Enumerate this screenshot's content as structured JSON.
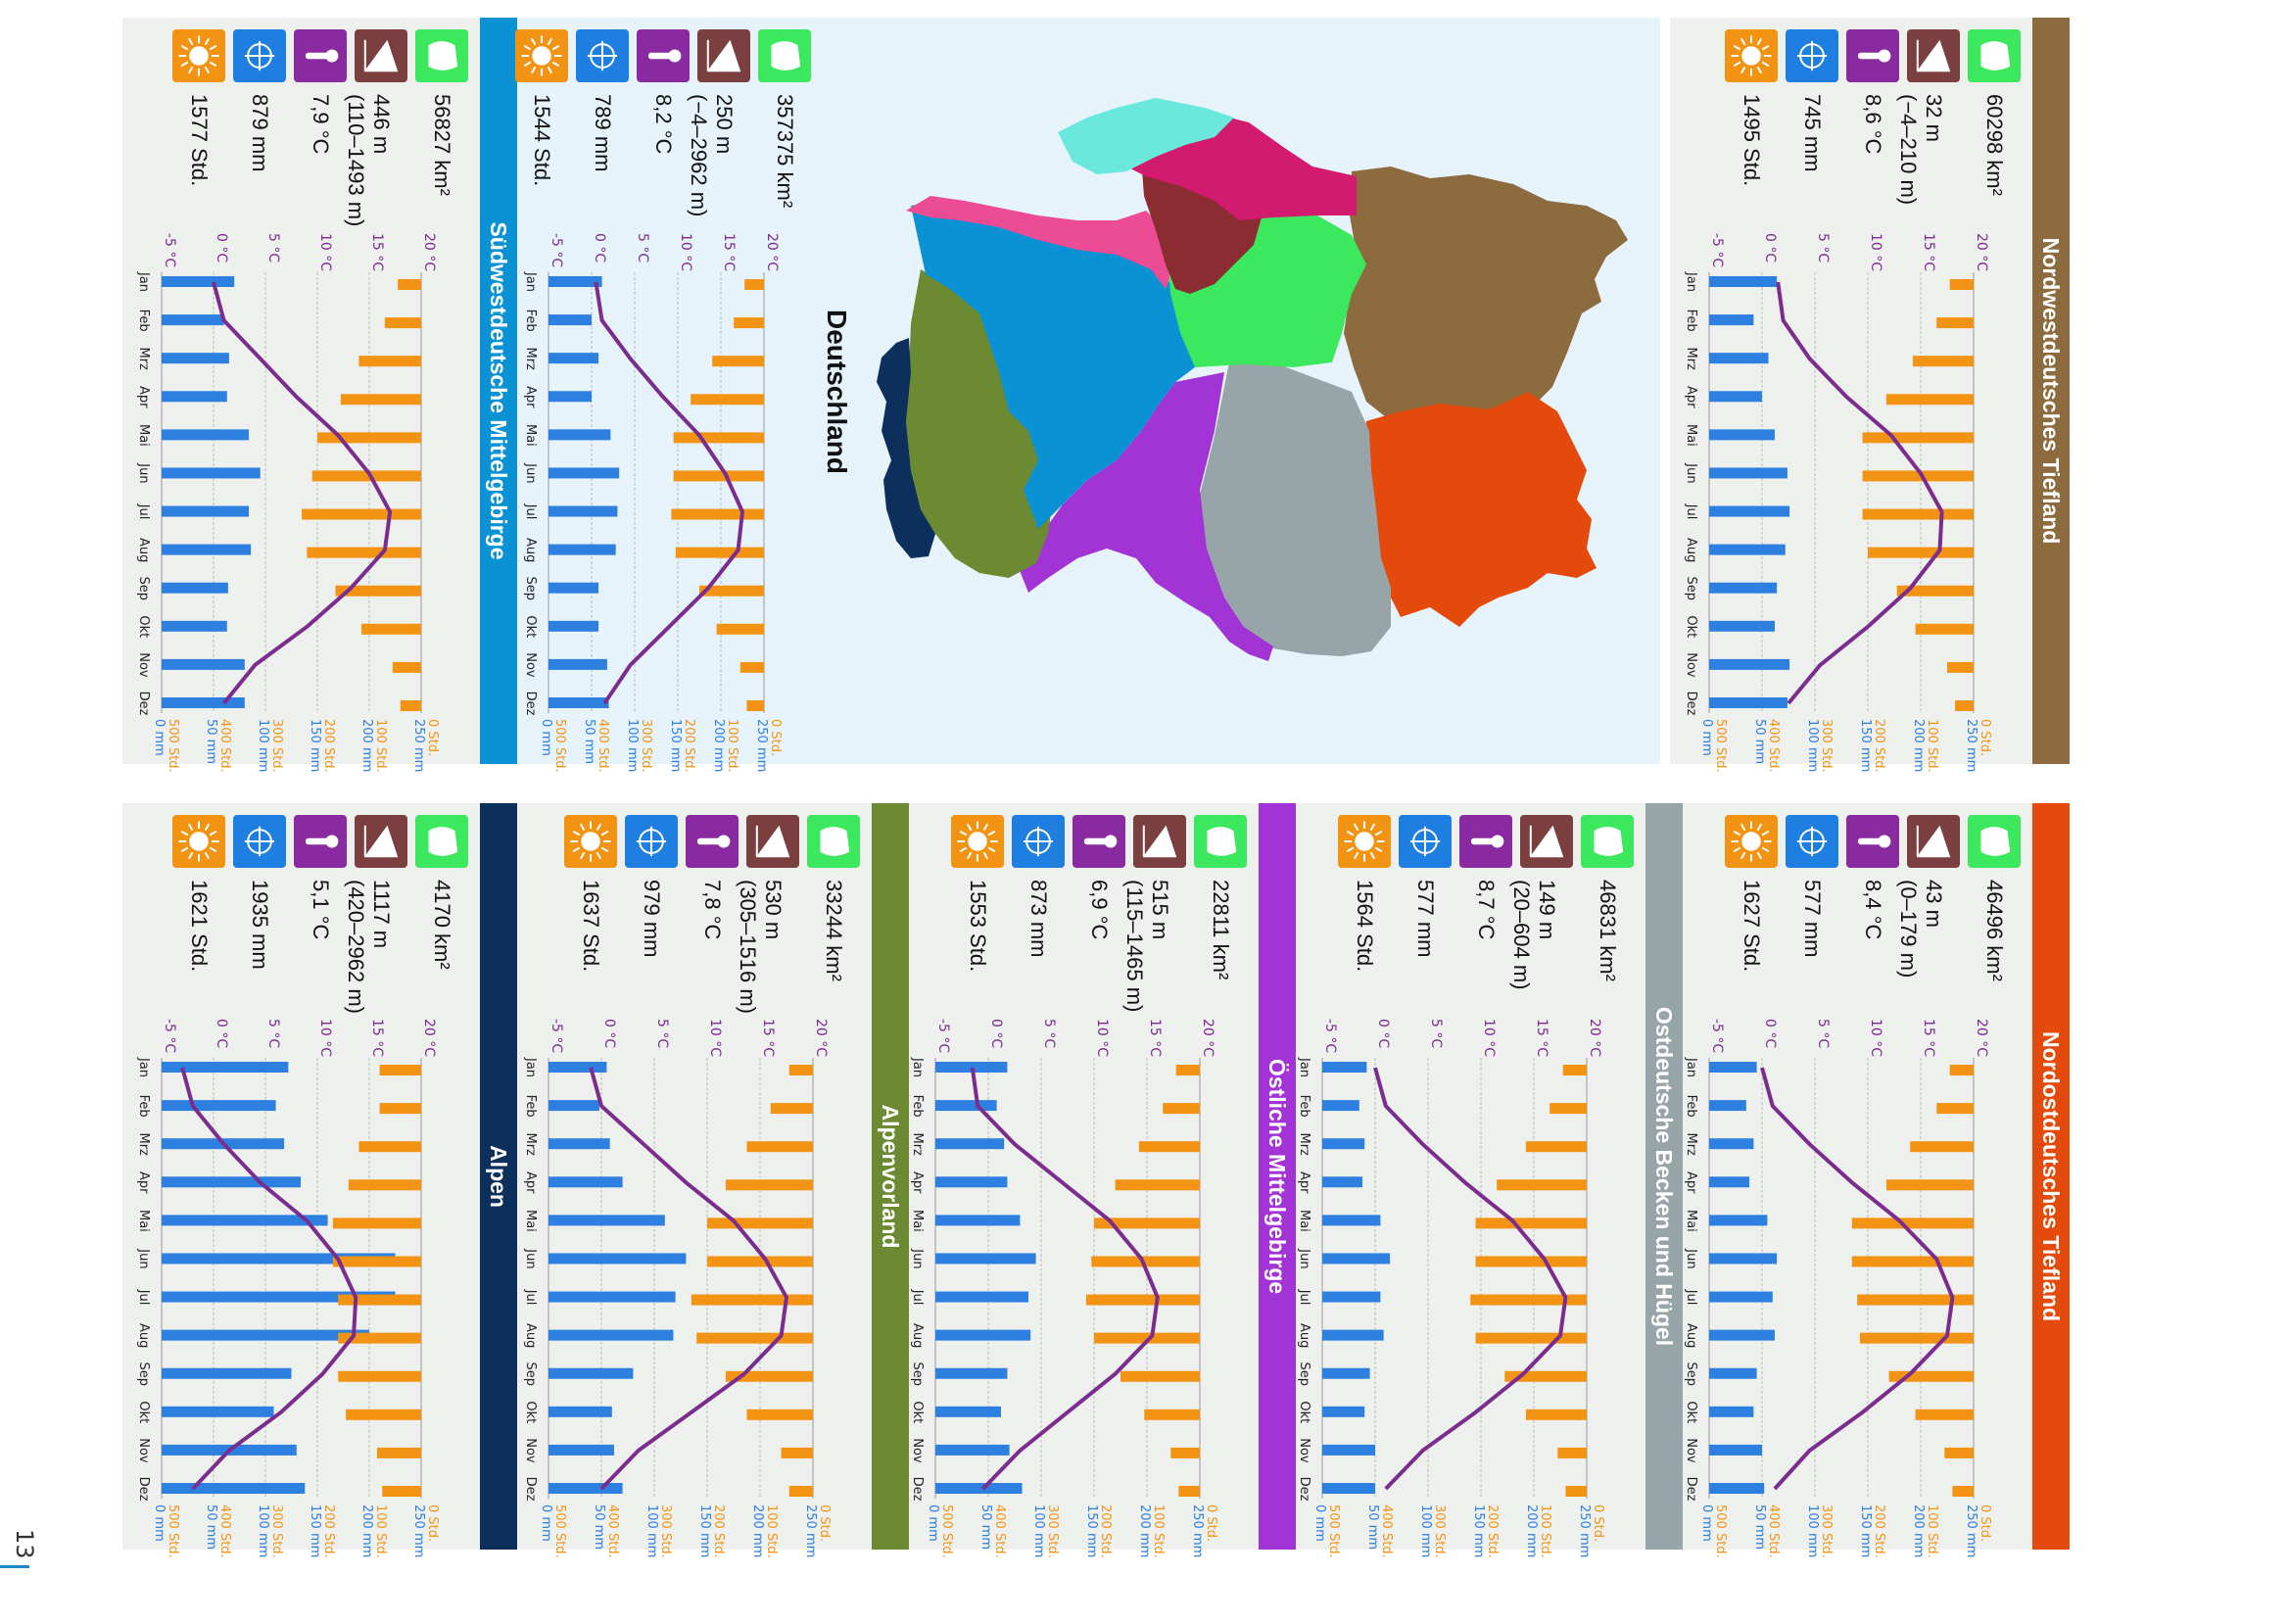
{
  "page_number": "13",
  "map": {
    "title": "Deutschland",
    "region_colors": [
      "#8c6b3e",
      "#e34a0b",
      "#98a5a8",
      "#a233d4",
      "#6b8a31",
      "#0d2f5c",
      "#0a92d4",
      "#ec4b95",
      "#3ce85d",
      "#8b2b32",
      "#d21a6e",
      "#6ae8db"
    ]
  },
  "icon_names": [
    "area-icon",
    "elevation-icon",
    "thermometer-icon",
    "precipitation-icon",
    "sunshine-icon"
  ],
  "colors": {
    "temperature": "#7b2d8e",
    "precipitation": "#2d7fe0",
    "sunshine": "#f39314",
    "panel": "#eef0ee"
  },
  "axes": {
    "temperature_ticks": [
      "20 °C",
      "15 °C",
      "10 °C",
      "5 °C",
      "0 °C",
      "-5 °C"
    ],
    "precipitation_ticks": [
      "250 mm",
      "200 mm",
      "150 mm",
      "100 mm",
      "50 mm",
      "0 mm"
    ],
    "sunshine_ticks": [
      "0 Std.",
      "100 Std.",
      "200 Std.",
      "300 Std.",
      "400 Std.",
      "500 Std."
    ]
  },
  "chart_data": [
    {
      "type": "bar",
      "title": "Nordwestdeutsches Tiefland",
      "color": "#8c6b3e",
      "stats": {
        "area": "60298 km²",
        "elevation": "32 m",
        "elevation_range": "(−4–210 m)",
        "temperature": "8,6 °C",
        "precipitation": "745 mm",
        "sunshine": "1495 Std."
      },
      "categories": [
        "Jan",
        "Feb",
        "Mrz",
        "Apr",
        "Mai",
        "Jun",
        "Jul",
        "Aug",
        "Sep",
        "Okt",
        "Nov",
        "Dez"
      ],
      "temperature": [
        1.5,
        2.0,
        4.5,
        8.0,
        12.2,
        15.0,
        17.0,
        16.8,
        14.0,
        10.0,
        5.5,
        2.5
      ],
      "precipitation": [
        64,
        42,
        56,
        50,
        62,
        74,
        76,
        72,
        64,
        62,
        76,
        74
      ],
      "sunshine": [
        45,
        70,
        115,
        165,
        210,
        210,
        210,
        200,
        145,
        110,
        50,
        35
      ],
      "ylim_temperature": [
        -5,
        20
      ],
      "ylim_precipitation": [
        0,
        250
      ],
      "ylim_sunshine": [
        0,
        500
      ]
    },
    {
      "type": "bar",
      "title": "Südwestdeutsche Mittelgebirge",
      "color": "#0a92d4",
      "stats": {
        "area": "56827 km²",
        "elevation": "446 m",
        "elevation_range": "(110–1493 m)",
        "temperature": "7,9 °C",
        "precipitation": "879 mm",
        "sunshine": "1577 Std."
      },
      "categories": [
        "Jan",
        "Feb",
        "Mrz",
        "Apr",
        "Mai",
        "Jun",
        "Jul",
        "Aug",
        "Sep",
        "Okt",
        "Nov",
        "Dez"
      ],
      "temperature": [
        0.0,
        1.0,
        4.5,
        8.0,
        12.0,
        15.0,
        17.0,
        16.5,
        13.2,
        9.0,
        4.0,
        1.0
      ],
      "precipitation": [
        70,
        60,
        65,
        63,
        84,
        95,
        84,
        86,
        64,
        63,
        80,
        80
      ],
      "sunshine": [
        45,
        70,
        120,
        155,
        200,
        210,
        230,
        220,
        165,
        115,
        55,
        40
      ],
      "ylim_temperature": [
        -5,
        20
      ],
      "ylim_precipitation": [
        0,
        250
      ],
      "ylim_sunshine": [
        0,
        500
      ]
    },
    {
      "type": "bar",
      "title": "Deutschland",
      "color": "#0a92d4",
      "stats": {
        "area": "357375 km²",
        "elevation": "250 m",
        "elevation_range": "(−4–2962 m)",
        "temperature": "8,2 °C",
        "precipitation": "789 mm",
        "sunshine": "1544 Std."
      },
      "categories": [
        "Jan",
        "Feb",
        "Mrz",
        "Apr",
        "Mai",
        "Jun",
        "Jul",
        "Aug",
        "Sep",
        "Okt",
        "Nov",
        "Dez"
      ],
      "temperature": [
        0.5,
        1.2,
        4.5,
        8.3,
        12.5,
        15.5,
        17.5,
        17.0,
        13.5,
        9.0,
        4.5,
        1.5
      ],
      "precipitation": [
        62,
        50,
        58,
        50,
        72,
        82,
        80,
        78,
        58,
        58,
        68,
        70
      ],
      "sunshine": [
        45,
        70,
        120,
        170,
        210,
        210,
        215,
        205,
        150,
        110,
        55,
        40
      ],
      "ylim_temperature": [
        -5,
        20
      ],
      "ylim_precipitation": [
        0,
        250
      ],
      "ylim_sunshine": [
        0,
        500
      ]
    },
    {
      "type": "bar",
      "title": "Nordostdeutsches Tiefland",
      "color": "#e34a0b",
      "stats": {
        "area": "46496 km²",
        "elevation": "43 m",
        "elevation_range": "(0–179 m)",
        "temperature": "8,4 °C",
        "precipitation": "577 mm",
        "sunshine": "1627 Std."
      },
      "categories": [
        "Jan",
        "Feb",
        "Mrz",
        "Apr",
        "Mai",
        "Jun",
        "Jul",
        "Aug",
        "Sep",
        "Okt",
        "Nov",
        "Dez"
      ],
      "temperature": [
        0.0,
        1.0,
        4.5,
        8.5,
        13.0,
        16.5,
        18.0,
        17.5,
        14.0,
        9.5,
        4.5,
        1.2
      ],
      "precipitation": [
        45,
        35,
        42,
        38,
        55,
        64,
        60,
        62,
        45,
        42,
        50,
        52
      ],
      "sunshine": [
        45,
        70,
        120,
        165,
        230,
        230,
        220,
        215,
        160,
        110,
        55,
        40
      ],
      "ylim_temperature": [
        -5,
        20
      ],
      "ylim_precipitation": [
        0,
        250
      ],
      "ylim_sunshine": [
        0,
        500
      ]
    },
    {
      "type": "bar",
      "title": "Ostdeutsche Becken und Hügel",
      "color": "#98a5a8",
      "stats": {
        "area": "46831 km²",
        "elevation": "149 m",
        "elevation_range": "(20–604 m)",
        "temperature": "8,7 °C",
        "precipitation": "577 mm",
        "sunshine": "1564 Std."
      },
      "categories": [
        "Jan",
        "Feb",
        "Mrz",
        "Apr",
        "Mai",
        "Jun",
        "Jul",
        "Aug",
        "Sep",
        "Okt",
        "Nov",
        "Dez"
      ],
      "temperature": [
        0.0,
        1.0,
        4.5,
        8.5,
        13.0,
        16.0,
        18.0,
        17.5,
        14.0,
        9.5,
        4.5,
        1.0
      ],
      "precipitation": [
        42,
        35,
        40,
        38,
        55,
        64,
        55,
        58,
        45,
        40,
        50,
        50
      ],
      "sunshine": [
        45,
        70,
        115,
        170,
        210,
        210,
        220,
        210,
        155,
        115,
        55,
        40
      ],
      "ylim_temperature": [
        -5,
        20
      ],
      "ylim_precipitation": [
        0,
        250
      ],
      "ylim_sunshine": [
        0,
        500
      ]
    },
    {
      "type": "bar",
      "title": "Östliche Mittelgebirge",
      "color": "#a233d4",
      "stats": {
        "area": "22811 km²",
        "elevation": "515 m",
        "elevation_range": "(115–1465 m)",
        "temperature": "6,9 °C",
        "precipitation": "873 mm",
        "sunshine": "1553 Std."
      },
      "categories": [
        "Jan",
        "Feb",
        "Mrz",
        "Apr",
        "Mai",
        "Jun",
        "Jul",
        "Aug",
        "Sep",
        "Okt",
        "Nov",
        "Dez"
      ],
      "temperature": [
        -1.5,
        -1.0,
        2.5,
        7.0,
        11.5,
        14.5,
        16.0,
        15.5,
        12.0,
        7.5,
        3.0,
        -0.5
      ],
      "precipitation": [
        68,
        58,
        65,
        68,
        80,
        95,
        88,
        90,
        68,
        62,
        70,
        82
      ],
      "sunshine": [
        45,
        70,
        115,
        160,
        200,
        205,
        215,
        200,
        150,
        105,
        55,
        40
      ],
      "ylim_temperature": [
        -5,
        20
      ],
      "ylim_precipitation": [
        0,
        250
      ],
      "ylim_sunshine": [
        0,
        500
      ]
    },
    {
      "type": "bar",
      "title": "Alpenvorland",
      "color": "#6b8a31",
      "stats": {
        "area": "33244 km²",
        "elevation": "530 m",
        "elevation_range": "(305–1516 m)",
        "temperature": "7,8 °C",
        "precipitation": "979 mm",
        "sunshine": "1637 Std."
      },
      "categories": [
        "Jan",
        "Feb",
        "Mrz",
        "Apr",
        "Mai",
        "Jun",
        "Jul",
        "Aug",
        "Sep",
        "Okt",
        "Nov",
        "Dez"
      ],
      "temperature": [
        -1.0,
        0.0,
        4.0,
        8.0,
        12.5,
        15.5,
        17.5,
        17.0,
        13.5,
        8.5,
        3.5,
        0.0
      ],
      "precipitation": [
        55,
        48,
        58,
        70,
        110,
        130,
        120,
        118,
        80,
        60,
        62,
        70
      ],
      "sunshine": [
        45,
        80,
        125,
        165,
        200,
        200,
        230,
        220,
        165,
        125,
        60,
        45
      ],
      "ylim_temperature": [
        -5,
        20
      ],
      "ylim_precipitation": [
        0,
        250
      ],
      "ylim_sunshine": [
        0,
        500
      ]
    },
    {
      "type": "bar",
      "title": "Alpen",
      "color": "#0d2f5c",
      "stats": {
        "area": "4170 km²",
        "elevation": "1117 m",
        "elevation_range": "(420–2962 m)",
        "temperature": "5,1 °C",
        "precipitation": "1935 mm",
        "sunshine": "1621 Std."
      },
      "categories": [
        "Jan",
        "Feb",
        "Mrz",
        "Apr",
        "Mai",
        "Jun",
        "Jul",
        "Aug",
        "Sep",
        "Okt",
        "Nov",
        "Dez"
      ],
      "temperature": [
        -3.0,
        -2.0,
        1.0,
        4.5,
        9.0,
        12.0,
        13.7,
        13.5,
        10.5,
        6.5,
        1.5,
        -2.0
      ],
      "precipitation": [
        122,
        110,
        118,
        134,
        160,
        225,
        225,
        200,
        125,
        108,
        130,
        138
      ],
      "sunshine": [
        80,
        80,
        120,
        140,
        170,
        170,
        160,
        160,
        160,
        145,
        85,
        75
      ],
      "ylim_temperature": [
        -5,
        20
      ],
      "ylim_precipitation": [
        0,
        250
      ],
      "ylim_sunshine": [
        0,
        500
      ]
    }
  ]
}
